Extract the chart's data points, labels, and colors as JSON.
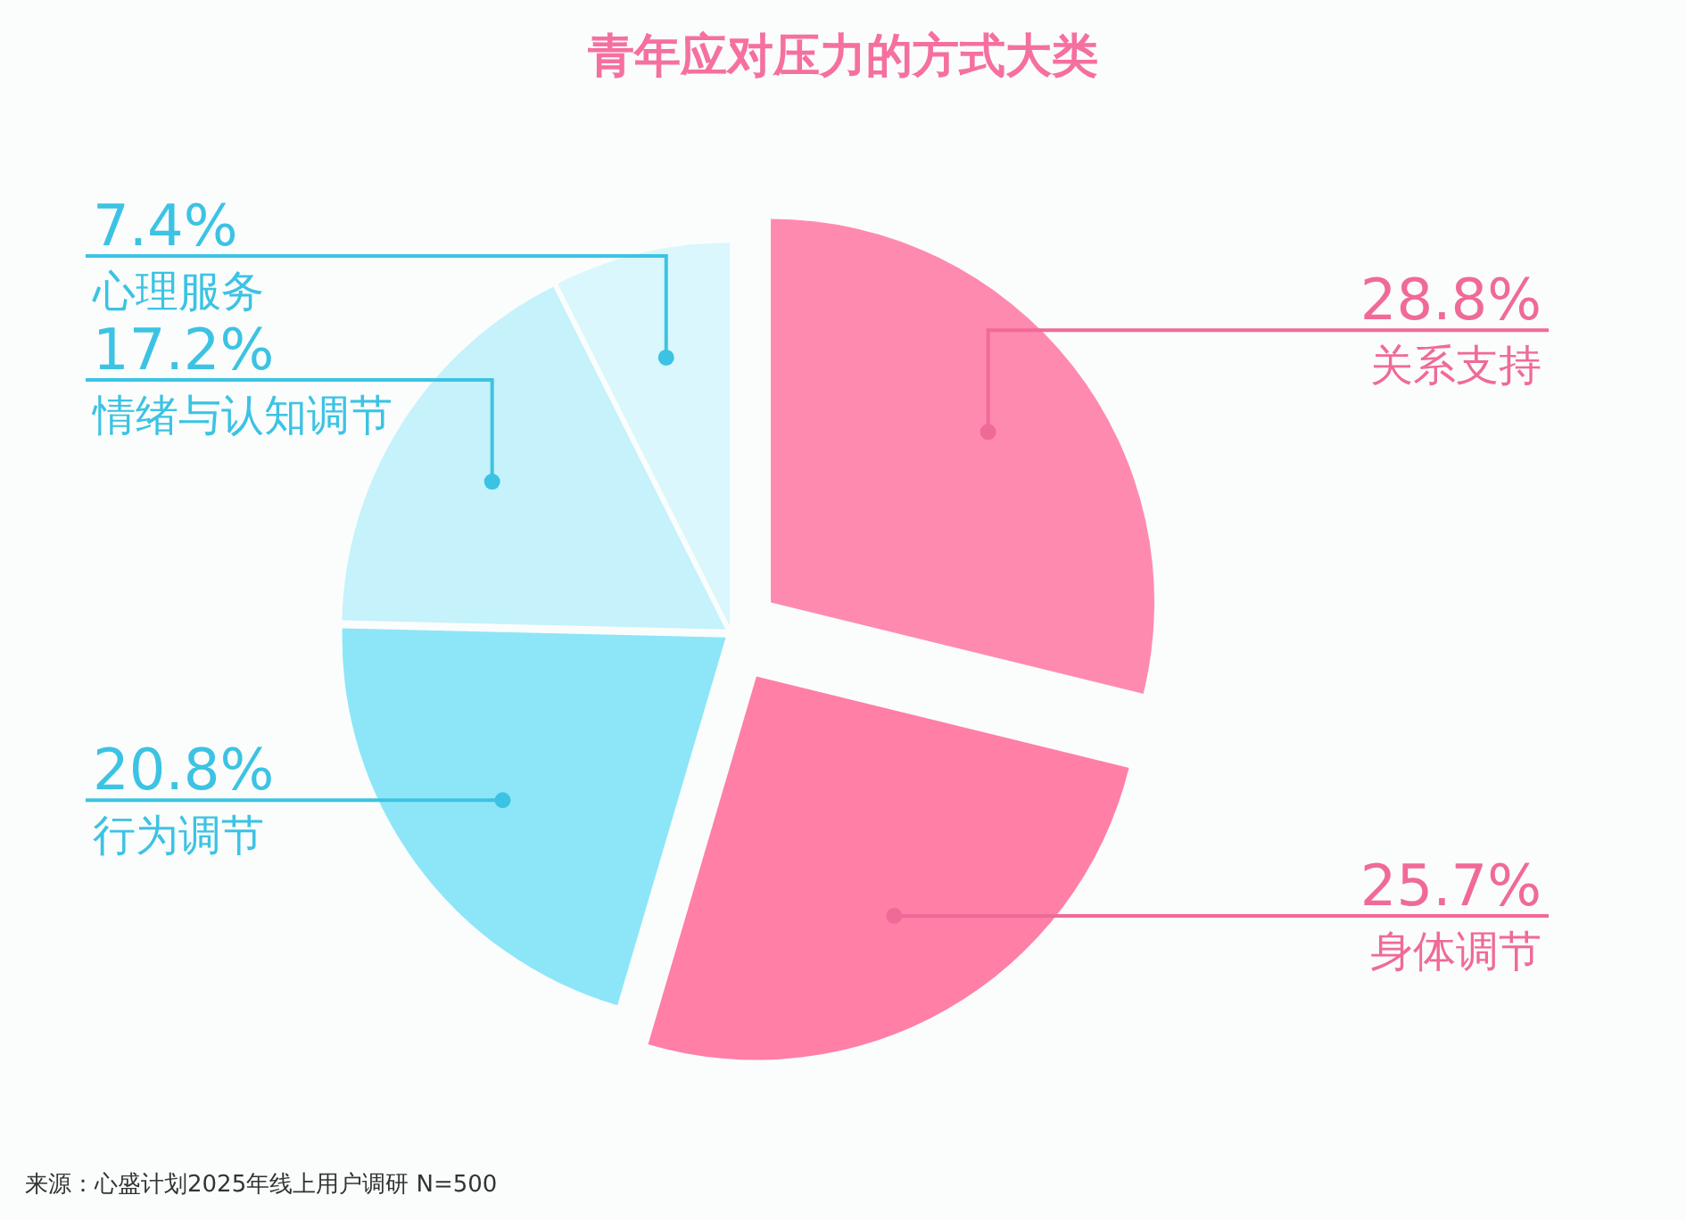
{
  "chart_data": {
    "type": "pie",
    "title": "青年应对压力的方式大类",
    "categories": [
      "关系支持",
      "身体调节",
      "行为调节",
      "情绪与认知调节",
      "心理服务"
    ],
    "values": [
      28.8,
      25.7,
      20.8,
      17.2,
      7.4
    ],
    "colors": [
      "#ff8ab0",
      "#ff7fa6",
      "#8de6f8",
      "#c5f2fb",
      "#d9f7fc"
    ],
    "value_labels": [
      "28.8%",
      "25.7%",
      "20.8%",
      "17.2%",
      "7.4%"
    ],
    "annotations": [
      "来源：心盛计划2025年线上用户调研 N=500"
    ]
  }
}
